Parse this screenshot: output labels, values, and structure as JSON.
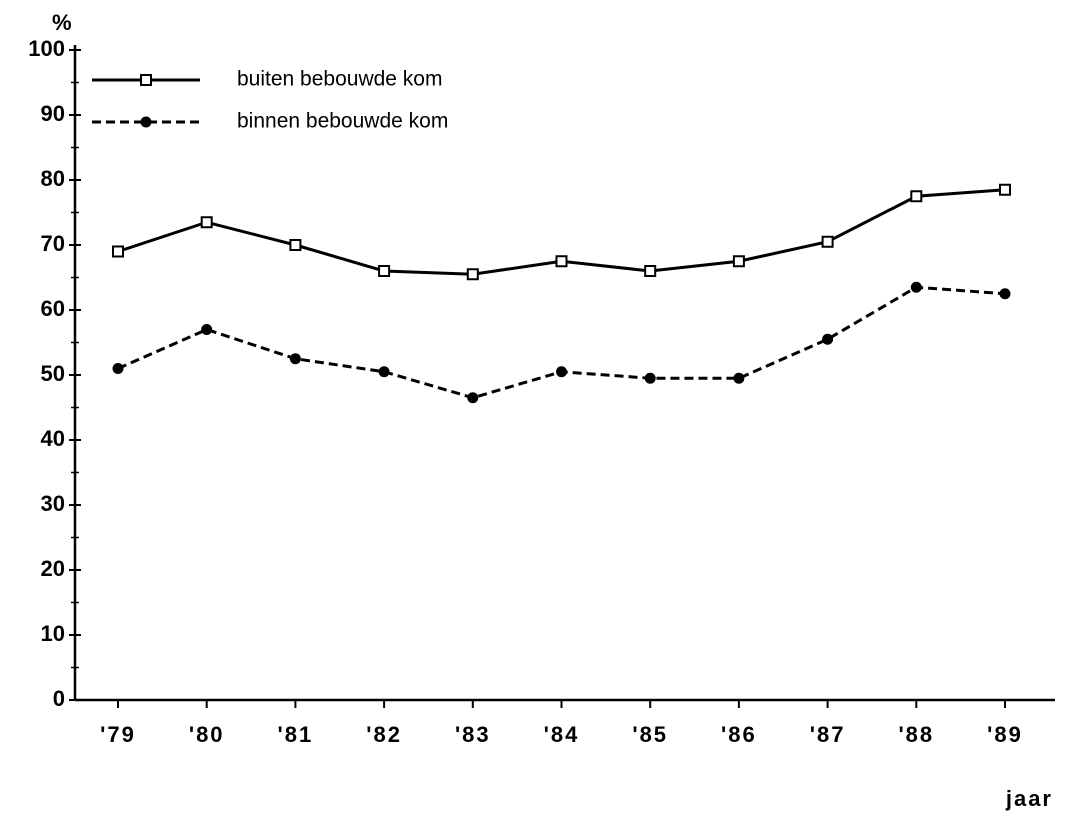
{
  "chart_data": {
    "type": "line",
    "y_label": "%",
    "x_label": "jaar",
    "categories": [
      "'79",
      "'80",
      "'81",
      "'82",
      "'83",
      "'84",
      "'85",
      "'86",
      "'87",
      "'88",
      "'89"
    ],
    "series": [
      {
        "name": "buiten bebouwde kom",
        "color": "#000000",
        "style": "solid",
        "marker": "square",
        "values": [
          69,
          73.5,
          70,
          66,
          65.5,
          67.5,
          66,
          67.5,
          70.5,
          77.5,
          78.5
        ]
      },
      {
        "name": "binnen bebouwde kom",
        "color": "#000000",
        "style": "dashed",
        "marker": "circle",
        "values": [
          51,
          57,
          52.5,
          50.5,
          46.5,
          50.5,
          49.5,
          49.5,
          55.5,
          63.5,
          62.5
        ]
      }
    ],
    "ylim": [
      0,
      100
    ],
    "yticks": [
      0,
      10,
      20,
      30,
      40,
      50,
      60,
      70,
      80,
      90,
      100
    ],
    "legend": "upper left",
    "grid": false
  }
}
